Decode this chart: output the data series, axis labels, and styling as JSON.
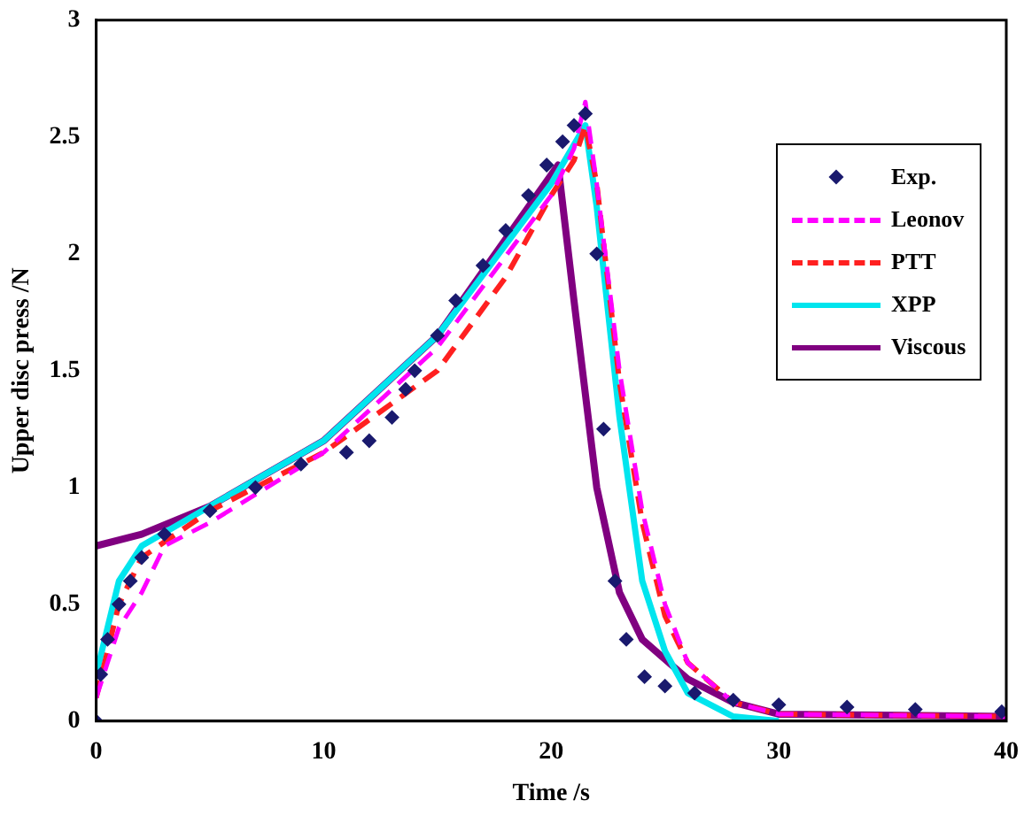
{
  "chart_data": {
    "type": "line",
    "xlabel": "Time /s",
    "ylabel": "Upper disc press /N",
    "xlim": [
      0,
      40
    ],
    "ylim": [
      0,
      3
    ],
    "xticks": [
      0,
      10,
      20,
      30,
      40
    ],
    "yticks": [
      0,
      0.5,
      1,
      1.5,
      2,
      2.5,
      3
    ],
    "grid": false,
    "legend": "top right",
    "series": [
      {
        "name": "Exp.",
        "type": "scatter",
        "marker": "diamond",
        "color": "#1a1a6e",
        "x": [
          0,
          0.2,
          0.5,
          1,
          1.5,
          2,
          3,
          5,
          7,
          9,
          11,
          12,
          13,
          13.6,
          14,
          15,
          15.8,
          17,
          18,
          19,
          19.8,
          20.5,
          21,
          21.5,
          22,
          22.3,
          22.8,
          23.3,
          24.1,
          25,
          26.3,
          28,
          30,
          33,
          36,
          39.8
        ],
        "values": [
          0,
          0.2,
          0.35,
          0.5,
          0.6,
          0.7,
          0.8,
          0.9,
          1.0,
          1.1,
          1.15,
          1.2,
          1.3,
          1.42,
          1.5,
          1.65,
          1.8,
          1.95,
          2.1,
          2.25,
          2.38,
          2.48,
          2.55,
          2.6,
          2.0,
          1.25,
          0.6,
          0.35,
          0.19,
          0.15,
          0.12,
          0.09,
          0.07,
          0.06,
          0.05,
          0.04
        ]
      },
      {
        "name": "Leonov",
        "line_style": "dashed",
        "color": "#ff00ff",
        "x": [
          0,
          0.5,
          1,
          2,
          3,
          5,
          10,
          15,
          20,
          21,
          21.5,
          22,
          23,
          24,
          25,
          26,
          28,
          30,
          40
        ],
        "values": [
          0.1,
          0.25,
          0.4,
          0.55,
          0.75,
          0.85,
          1.15,
          1.6,
          2.25,
          2.45,
          2.65,
          2.3,
          1.5,
          0.9,
          0.5,
          0.25,
          0.08,
          0.03,
          0.02
        ]
      },
      {
        "name": "PTT",
        "line_style": "dashed",
        "color": "#ff2020",
        "x": [
          0,
          0.5,
          1,
          2,
          5,
          10,
          15,
          18,
          20,
          21,
          21.5,
          22,
          23,
          24,
          25,
          26,
          28,
          30,
          40
        ],
        "values": [
          0.1,
          0.3,
          0.5,
          0.7,
          0.9,
          1.15,
          1.5,
          1.9,
          2.25,
          2.4,
          2.55,
          2.3,
          1.45,
          0.85,
          0.45,
          0.25,
          0.08,
          0.03,
          0.02
        ]
      },
      {
        "name": "XPP",
        "line_style": "solid",
        "color": "#00e5ee",
        "x": [
          0,
          1,
          2,
          5,
          10,
          15,
          20,
          21.5,
          22,
          23,
          24,
          25,
          26,
          28,
          30
        ],
        "values": [
          0.2,
          0.6,
          0.75,
          0.92,
          1.2,
          1.65,
          2.3,
          2.55,
          2.2,
          1.3,
          0.6,
          0.3,
          0.12,
          0.02,
          0
        ]
      },
      {
        "name": "Viscous",
        "line_style": "solid",
        "color": "#800080",
        "x": [
          0,
          2,
          5,
          10,
          15,
          20.3,
          21,
          22,
          23,
          24,
          26,
          28,
          30,
          40
        ],
        "values": [
          0.75,
          0.8,
          0.92,
          1.2,
          1.65,
          2.38,
          1.8,
          1.0,
          0.55,
          0.35,
          0.18,
          0.08,
          0.03,
          0.02
        ]
      }
    ]
  }
}
